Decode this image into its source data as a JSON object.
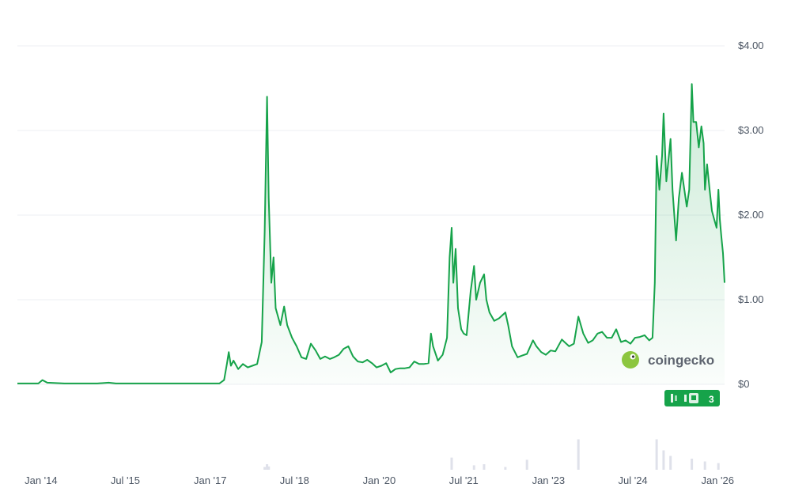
{
  "watermark": {
    "text": "coingecko",
    "icon": "gecko-logo-icon"
  },
  "price_badge": {
    "label": "3",
    "icon": "bars-icon",
    "color": "#16a34a"
  },
  "colors": {
    "line": "#16a34a",
    "fill_top": "#16a34a",
    "grid": "#eceff3",
    "volume": "#dfe1ea"
  },
  "chart_data": {
    "type": "area",
    "title": "",
    "xlabel": "",
    "ylabel": "",
    "y_axis_position": "right",
    "ylim": [
      0,
      4
    ],
    "yticks": [
      {
        "value": 0,
        "label": "$0"
      },
      {
        "value": 1,
        "label": "$1.00"
      },
      {
        "value": 2,
        "label": "$2.00"
      },
      {
        "value": 3,
        "label": "$3.00"
      },
      {
        "value": 4,
        "label": "$4.00"
      }
    ],
    "xlim": [
      "2013-08-01",
      "2026-02-15"
    ],
    "xticks": [
      {
        "date": "2014-01-01",
        "label": "Jan '14"
      },
      {
        "date": "2015-07-01",
        "label": "Jul '15"
      },
      {
        "date": "2017-01-01",
        "label": "Jan '17"
      },
      {
        "date": "2018-07-01",
        "label": "Jul '18"
      },
      {
        "date": "2020-01-01",
        "label": "Jan '20"
      },
      {
        "date": "2021-07-01",
        "label": "Jul '21"
      },
      {
        "date": "2023-01-01",
        "label": "Jan '23"
      },
      {
        "date": "2024-07-01",
        "label": "Jul '24"
      },
      {
        "date": "2026-01-01",
        "label": "Jan '26"
      }
    ],
    "grid": true,
    "series": [
      {
        "points": [
          [
            "2013-08-01",
            0.01
          ],
          [
            "2013-12-15",
            0.01
          ],
          [
            "2014-01-10",
            0.05
          ],
          [
            "2014-02-10",
            0.02
          ],
          [
            "2014-06-01",
            0.01
          ],
          [
            "2015-01-01",
            0.01
          ],
          [
            "2015-03-15",
            0.02
          ],
          [
            "2015-05-01",
            0.01
          ],
          [
            "2016-06-01",
            0.01
          ],
          [
            "2017-01-01",
            0.01
          ],
          [
            "2017-03-01",
            0.01
          ],
          [
            "2017-04-01",
            0.05
          ],
          [
            "2017-04-20",
            0.25
          ],
          [
            "2017-05-01",
            0.38
          ],
          [
            "2017-05-15",
            0.22
          ],
          [
            "2017-06-01",
            0.28
          ],
          [
            "2017-07-01",
            0.18
          ],
          [
            "2017-08-01",
            0.24
          ],
          [
            "2017-09-01",
            0.2
          ],
          [
            "2017-10-01",
            0.22
          ],
          [
            "2017-11-01",
            0.24
          ],
          [
            "2017-12-01",
            0.5
          ],
          [
            "2017-12-20",
            1.8
          ],
          [
            "2018-01-04",
            3.4
          ],
          [
            "2018-01-15",
            2.2
          ],
          [
            "2018-02-01",
            1.2
          ],
          [
            "2018-02-15",
            1.5
          ],
          [
            "2018-03-01",
            0.9
          ],
          [
            "2018-04-01",
            0.7
          ],
          [
            "2018-04-25",
            0.92
          ],
          [
            "2018-05-15",
            0.7
          ],
          [
            "2018-06-15",
            0.55
          ],
          [
            "2018-07-15",
            0.45
          ],
          [
            "2018-08-15",
            0.32
          ],
          [
            "2018-09-15",
            0.3
          ],
          [
            "2018-10-15",
            0.48
          ],
          [
            "2018-11-15",
            0.4
          ],
          [
            "2018-12-15",
            0.3
          ],
          [
            "2019-01-15",
            0.33
          ],
          [
            "2019-02-15",
            0.3
          ],
          [
            "2019-03-15",
            0.32
          ],
          [
            "2019-04-15",
            0.35
          ],
          [
            "2019-05-15",
            0.42
          ],
          [
            "2019-06-15",
            0.45
          ],
          [
            "2019-07-15",
            0.33
          ],
          [
            "2019-08-15",
            0.27
          ],
          [
            "2019-09-15",
            0.26
          ],
          [
            "2019-10-15",
            0.29
          ],
          [
            "2019-11-15",
            0.25
          ],
          [
            "2019-12-15",
            0.2
          ],
          [
            "2020-01-15",
            0.22
          ],
          [
            "2020-02-15",
            0.25
          ],
          [
            "2020-03-15",
            0.14
          ],
          [
            "2020-04-15",
            0.18
          ],
          [
            "2020-05-15",
            0.19
          ],
          [
            "2020-06-15",
            0.19
          ],
          [
            "2020-07-15",
            0.2
          ],
          [
            "2020-08-15",
            0.27
          ],
          [
            "2020-09-15",
            0.24
          ],
          [
            "2020-10-15",
            0.24
          ],
          [
            "2020-11-15",
            0.25
          ],
          [
            "2020-12-01",
            0.6
          ],
          [
            "2020-12-15",
            0.45
          ],
          [
            "2021-01-15",
            0.28
          ],
          [
            "2021-02-15",
            0.35
          ],
          [
            "2021-03-15",
            0.55
          ],
          [
            "2021-04-01",
            1.5
          ],
          [
            "2021-04-14",
            1.85
          ],
          [
            "2021-04-25",
            1.2
          ],
          [
            "2021-05-10",
            1.6
          ],
          [
            "2021-05-25",
            0.9
          ],
          [
            "2021-06-15",
            0.65
          ],
          [
            "2021-07-01",
            0.6
          ],
          [
            "2021-07-20",
            0.58
          ],
          [
            "2021-08-15",
            1.1
          ],
          [
            "2021-09-06",
            1.4
          ],
          [
            "2021-09-20",
            1.0
          ],
          [
            "2021-10-15",
            1.2
          ],
          [
            "2021-11-10",
            1.3
          ],
          [
            "2021-11-25",
            1.0
          ],
          [
            "2021-12-15",
            0.85
          ],
          [
            "2022-01-15",
            0.75
          ],
          [
            "2022-02-15",
            0.78
          ],
          [
            "2022-03-28",
            0.85
          ],
          [
            "2022-04-15",
            0.7
          ],
          [
            "2022-05-10",
            0.45
          ],
          [
            "2022-06-15",
            0.32
          ],
          [
            "2022-07-15",
            0.34
          ],
          [
            "2022-08-15",
            0.36
          ],
          [
            "2022-09-23",
            0.52
          ],
          [
            "2022-10-15",
            0.45
          ],
          [
            "2022-11-15",
            0.38
          ],
          [
            "2022-12-15",
            0.35
          ],
          [
            "2023-01-15",
            0.4
          ],
          [
            "2023-02-15",
            0.39
          ],
          [
            "2023-03-29",
            0.53
          ],
          [
            "2023-04-15",
            0.5
          ],
          [
            "2023-05-15",
            0.45
          ],
          [
            "2023-06-15",
            0.48
          ],
          [
            "2023-07-14",
            0.8
          ],
          [
            "2023-08-15",
            0.6
          ],
          [
            "2023-09-15",
            0.49
          ],
          [
            "2023-10-15",
            0.52
          ],
          [
            "2023-11-15",
            0.6
          ],
          [
            "2023-12-15",
            0.62
          ],
          [
            "2024-01-15",
            0.55
          ],
          [
            "2024-02-15",
            0.55
          ],
          [
            "2024-03-15",
            0.65
          ],
          [
            "2024-04-15",
            0.5
          ],
          [
            "2024-05-15",
            0.52
          ],
          [
            "2024-06-15",
            0.48
          ],
          [
            "2024-07-15",
            0.55
          ],
          [
            "2024-08-15",
            0.56
          ],
          [
            "2024-09-15",
            0.58
          ],
          [
            "2024-10-15",
            0.52
          ],
          [
            "2024-11-05",
            0.55
          ],
          [
            "2024-11-20",
            1.2
          ],
          [
            "2024-12-02",
            2.7
          ],
          [
            "2024-12-20",
            2.3
          ],
          [
            "2025-01-06",
            2.7
          ],
          [
            "2025-01-16",
            3.2
          ],
          [
            "2025-02-03",
            2.4
          ],
          [
            "2025-03-02",
            2.9
          ],
          [
            "2025-03-15",
            2.3
          ],
          [
            "2025-04-07",
            1.7
          ],
          [
            "2025-04-25",
            2.2
          ],
          [
            "2025-05-15",
            2.5
          ],
          [
            "2025-06-15",
            2.1
          ],
          [
            "2025-07-01",
            2.3
          ],
          [
            "2025-07-18",
            3.55
          ],
          [
            "2025-07-28",
            3.1
          ],
          [
            "2025-08-15",
            3.1
          ],
          [
            "2025-09-01",
            2.8
          ],
          [
            "2025-09-18",
            3.05
          ],
          [
            "2025-10-02",
            2.85
          ],
          [
            "2025-10-11",
            2.3
          ],
          [
            "2025-10-25",
            2.6
          ],
          [
            "2025-11-10",
            2.3
          ],
          [
            "2025-11-25",
            2.05
          ],
          [
            "2025-12-10",
            1.95
          ],
          [
            "2025-12-25",
            1.85
          ],
          [
            "2026-01-06",
            2.3
          ],
          [
            "2026-01-15",
            1.95
          ],
          [
            "2026-01-25",
            1.75
          ],
          [
            "2026-02-05",
            1.55
          ],
          [
            "2026-02-15",
            1.2
          ]
        ]
      }
    ],
    "volume": [
      [
        "2017-12-20",
        0.05
      ],
      [
        "2018-01-04",
        0.1
      ],
      [
        "2018-01-15",
        0.06
      ],
      [
        "2021-04-14",
        0.22
      ],
      [
        "2021-09-06",
        0.08
      ],
      [
        "2021-11-10",
        0.1
      ],
      [
        "2022-03-28",
        0.05
      ],
      [
        "2022-08-15",
        0.18
      ],
      [
        "2023-07-14",
        0.55
      ],
      [
        "2024-12-02",
        0.55
      ],
      [
        "2025-01-16",
        0.35
      ],
      [
        "2025-03-02",
        0.25
      ],
      [
        "2025-07-18",
        0.2
      ],
      [
        "2025-10-11",
        0.15
      ],
      [
        "2026-01-06",
        0.12
      ]
    ]
  }
}
